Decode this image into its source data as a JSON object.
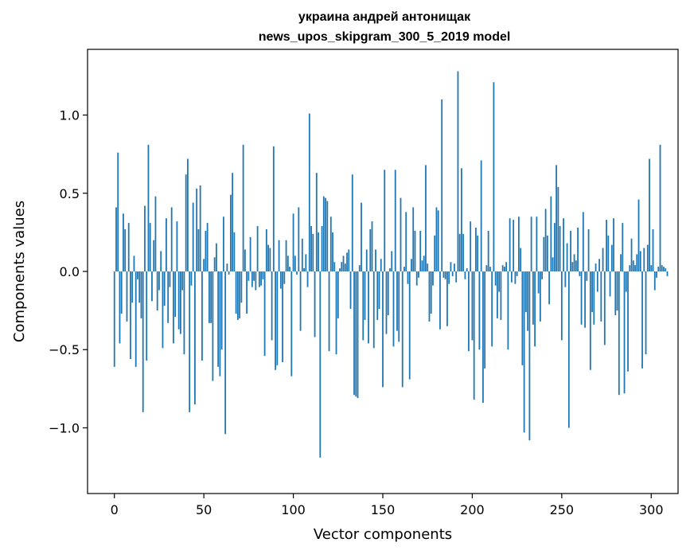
{
  "chart_data": {
    "type": "bar",
    "title_line1": "украина андрей антонищак",
    "title_line2": "news_upos_skipgram_300_5_2019 model",
    "xlabel": "Vector components",
    "ylabel": "Components values",
    "xlim": [
      -15,
      315
    ],
    "ylim": [
      -1.42,
      1.42
    ],
    "xticks": [
      0,
      50,
      100,
      150,
      200,
      250,
      300
    ],
    "xtick_labels": [
      "0",
      "50",
      "100",
      "150",
      "200",
      "250",
      "300"
    ],
    "yticks": [
      -1.0,
      -0.5,
      0.0,
      0.5,
      1.0
    ],
    "ytick_labels": [
      "−1.0",
      "−0.5",
      "0.0",
      "0.5",
      "1.0"
    ],
    "bar_color": "#1f77b4",
    "grid": false,
    "values": [
      -0.61,
      0.41,
      0.76,
      -0.46,
      -0.27,
      0.37,
      0.27,
      -0.32,
      0.31,
      -0.56,
      -0.2,
      0.1,
      -0.61,
      -0.05,
      -0.2,
      -0.3,
      -0.9,
      0.42,
      -0.57,
      0.81,
      0.31,
      -0.19,
      0.2,
      0.48,
      -0.25,
      -0.12,
      0.13,
      -0.49,
      -0.22,
      0.34,
      -0.33,
      -0.1,
      0.41,
      -0.46,
      -0.29,
      0.32,
      -0.37,
      -0.4,
      -0.12,
      -0.53,
      0.62,
      0.72,
      -0.9,
      -0.09,
      0.44,
      -0.85,
      0.53,
      0.27,
      0.55,
      -0.57,
      0.08,
      0.26,
      0.31,
      -0.33,
      -0.33,
      -0.7,
      0.09,
      0.18,
      -0.61,
      -0.67,
      -0.5,
      0.35,
      -1.04,
      0.05,
      -0.02,
      0.49,
      0.63,
      0.25,
      -0.27,
      -0.31,
      -0.3,
      -0.2,
      0.81,
      0.14,
      -0.27,
      -0.06,
      0.22,
      -0.1,
      -0.06,
      -0.12,
      0.29,
      -0.1,
      -0.09,
      -0.05,
      -0.54,
      0.27,
      0.17,
      0.15,
      -0.44,
      0.8,
      -0.63,
      -0.6,
      0.2,
      -0.11,
      -0.58,
      -0.08,
      0.2,
      0.1,
      0.03,
      -0.67,
      0.37,
      0.1,
      -0.02,
      0.41,
      -0.38,
      0.21,
      0.02,
      0.11,
      -0.1,
      1.01,
      0.29,
      0.24,
      -0.42,
      0.63,
      0.25,
      -1.19,
      0.29,
      0.48,
      0.47,
      0.45,
      -0.51,
      0.35,
      0.25,
      0.06,
      -0.53,
      -0.3,
      0.02,
      0.06,
      0.1,
      0.05,
      0.12,
      0.14,
      -0.24,
      0.62,
      -0.79,
      -0.8,
      -0.81,
      0.04,
      0.44,
      -0.44,
      -0.31,
      0.14,
      -0.46,
      0.27,
      0.32,
      -0.49,
      0.14,
      -0.31,
      -0.24,
      0.08,
      -0.74,
      0.65,
      -0.4,
      -0.28,
      0.02,
      0.13,
      -0.48,
      0.65,
      -0.38,
      -0.45,
      0.47,
      -0.74,
      0.03,
      0.38,
      -0.08,
      -0.69,
      0.08,
      0.41,
      0.26,
      -0.09,
      -0.04,
      0.26,
      0.07,
      0.1,
      0.68,
      0.05,
      -0.32,
      -0.27,
      -0.09,
      0.23,
      0.41,
      0.39,
      -0.37,
      1.1,
      -0.04,
      -0.05,
      -0.35,
      -0.08,
      0.06,
      -0.03,
      0.05,
      -0.07,
      1.28,
      0.24,
      0.66,
      0.24,
      -0.05,
      0.02,
      -0.51,
      0.32,
      -0.44,
      -0.82,
      0.28,
      0.23,
      -0.5,
      0.71,
      -0.84,
      -0.62,
      0.04,
      0.26,
      0.03,
      -0.48,
      1.21,
      -0.09,
      -0.3,
      -0.13,
      -0.31,
      0.04,
      0.03,
      0.06,
      -0.5,
      0.34,
      -0.07,
      0.33,
      -0.08,
      -0.03,
      0.35,
      0.15,
      -0.6,
      -1.03,
      -0.26,
      -0.38,
      -1.08,
      0.35,
      -0.34,
      -0.48,
      0.35,
      -0.14,
      -0.32,
      -0.05,
      0.22,
      0.4,
      0.23,
      -0.21,
      0.48,
      0.09,
      0.31,
      0.68,
      0.54,
      0.29,
      -0.44,
      0.34,
      -0.1,
      0.18,
      -1.0,
      0.26,
      0.06,
      0.11,
      0.07,
      0.28,
      -0.03,
      -0.34,
      0.38,
      -0.36,
      -0.06,
      0.27,
      -0.63,
      -0.26,
      -0.34,
      0.05,
      -0.13,
      0.08,
      -0.32,
      0.15,
      -0.47,
      0.33,
      0.23,
      -0.16,
      0.17,
      0.34,
      -0.28,
      -0.25,
      -0.79,
      0.11,
      0.31,
      -0.78,
      -0.13,
      -0.64,
      0.04,
      0.21,
      0.07,
      0.04,
      0.11,
      0.46,
      0.13,
      -0.62,
      0.15,
      -0.53,
      0.17,
      0.72,
      0.04,
      0.27,
      -0.12,
      -0.04,
      0.03,
      0.81,
      0.04,
      0.03,
      0.02,
      -0.03
    ]
  }
}
